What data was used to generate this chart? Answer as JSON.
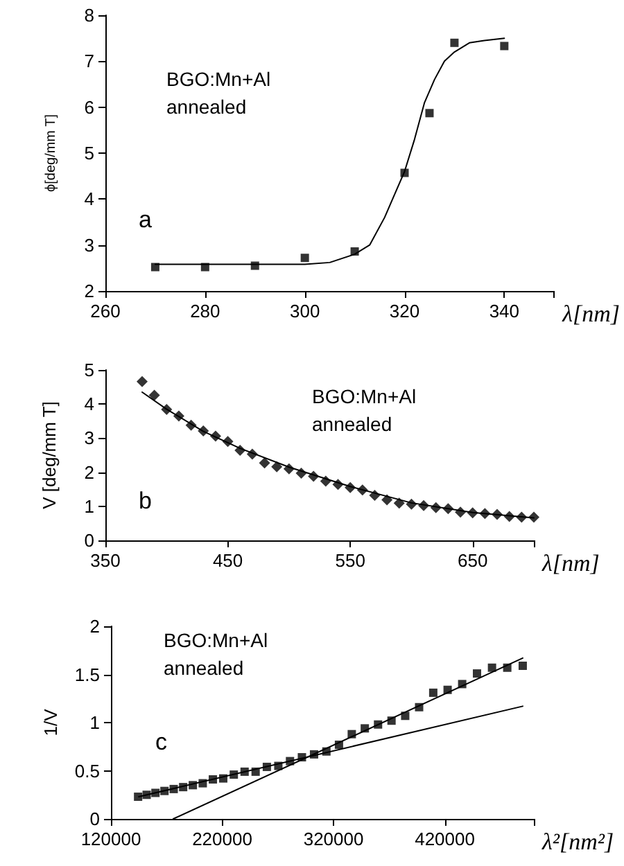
{
  "chart_data": [
    {
      "type": "scatter",
      "xlabel": "λ[nm]",
      "ylabel": "ϕ[deg/mm T]",
      "annotations": [
        "BGO:Mn+Al",
        "annealed",
        "a"
      ],
      "xlim": [
        260,
        350
      ],
      "xticks": [
        260,
        280,
        300,
        320,
        340,
        {
          "value": 350,
          "label": null
        }
      ],
      "ylim": [
        2,
        8
      ],
      "yticks": [
        2,
        3,
        4,
        5,
        6,
        7,
        8
      ],
      "grid": false,
      "series": [
        {
          "marker": "square",
          "color": "#000000",
          "x": [
            270,
            280,
            290,
            300,
            310,
            320,
            325,
            330,
            340
          ],
          "values": [
            2.52,
            2.52,
            2.55,
            2.72,
            2.86,
            4.57,
            5.87,
            7.4,
            7.33
          ]
        },
        {
          "type": "line",
          "marker": "none",
          "line_style": "solid",
          "color": "#000000",
          "x": [
            270,
            280,
            290,
            300,
            305,
            310,
            313,
            316,
            318,
            320,
            322,
            324,
            326,
            328,
            330,
            333,
            336,
            340
          ],
          "values": [
            2.58,
            2.58,
            2.58,
            2.58,
            2.62,
            2.8,
            3.0,
            3.6,
            4.1,
            4.6,
            5.3,
            6.1,
            6.6,
            7.0,
            7.2,
            7.4,
            7.45,
            7.5
          ]
        }
      ]
    },
    {
      "type": "scatter",
      "xlabel": "λ[nm]",
      "ylabel": "V [deg/mm T]",
      "annotations": [
        "BGO:Mn+Al",
        "annealed",
        "b"
      ],
      "xlim": [
        350,
        700
      ],
      "xticks": [
        350,
        450,
        550,
        650,
        {
          "value": 700,
          "label": null
        }
      ],
      "ylim": [
        0,
        5
      ],
      "yticks": [
        0,
        1,
        2,
        3,
        4,
        5
      ],
      "grid": false,
      "series": [
        {
          "marker": "diamond",
          "color": "#000000",
          "x": [
            380,
            390,
            400,
            410,
            420,
            430,
            440,
            450,
            460,
            470,
            480,
            490,
            500,
            510,
            520,
            530,
            540,
            550,
            560,
            570,
            580,
            590,
            600,
            610,
            620,
            630,
            640,
            650,
            660,
            670,
            680,
            690,
            700
          ],
          "values": [
            4.66,
            4.26,
            3.84,
            3.65,
            3.38,
            3.21,
            3.06,
            2.9,
            2.64,
            2.53,
            2.27,
            2.16,
            2.1,
            1.97,
            1.88,
            1.74,
            1.64,
            1.55,
            1.48,
            1.32,
            1.19,
            1.09,
            1.06,
            1.02,
            0.96,
            0.93,
            0.83,
            0.81,
            0.79,
            0.76,
            0.7,
            0.68,
            0.68
          ]
        },
        {
          "type": "line",
          "marker": "none",
          "line_style": "solid",
          "color": "#000000",
          "x": [
            380,
            400,
            430,
            460,
            500,
            550,
            600,
            650,
            700
          ],
          "values": [
            4.35,
            3.85,
            3.2,
            2.7,
            2.15,
            1.58,
            1.1,
            0.82,
            0.66
          ]
        }
      ]
    },
    {
      "type": "scatter",
      "xlabel": "λ²[nm²]",
      "ylabel": "1/V",
      "annotations": [
        "BGO:Mn+Al",
        "annealed",
        "c"
      ],
      "xlim": [
        120000,
        500000
      ],
      "xticks": [
        120000,
        220000,
        320000,
        420000,
        {
          "value": 500000,
          "label": null
        }
      ],
      "ylim": [
        0,
        2
      ],
      "yticks": [
        0,
        0.5,
        1,
        1.5,
        2
      ],
      "grid": false,
      "series": [
        {
          "marker": "square",
          "color": "#000000",
          "x": [
            144400,
            152100,
            160000,
            168100,
            176400,
            184900,
            193600,
            202500,
            211600,
            220900,
            230400,
            240100,
            250000,
            260100,
            270400,
            280900,
            291600,
            302500,
            313600,
            324900,
            336400,
            348100,
            360000,
            372100,
            384400,
            396900,
            409600,
            422500,
            435600,
            448900,
            462400,
            476100,
            490000
          ],
          "values": [
            0.23,
            0.25,
            0.27,
            0.29,
            0.31,
            0.33,
            0.35,
            0.37,
            0.41,
            0.42,
            0.46,
            0.49,
            0.49,
            0.54,
            0.55,
            0.6,
            0.64,
            0.67,
            0.7,
            0.77,
            0.88,
            0.94,
            0.98,
            1.02,
            1.07,
            1.16,
            1.31,
            1.34,
            1.4,
            1.51,
            1.57,
            1.57,
            1.59
          ]
        },
        {
          "type": "line",
          "marker": "none",
          "line_style": "solid",
          "color": "#000000",
          "x": [
            145000,
            490000
          ],
          "values": [
            0.23,
            1.17
          ]
        },
        {
          "type": "line",
          "marker": "none",
          "line_style": "solid",
          "color": "#000000",
          "x": [
            176000,
            490000
          ],
          "values": [
            0,
            1.67
          ]
        }
      ]
    }
  ]
}
